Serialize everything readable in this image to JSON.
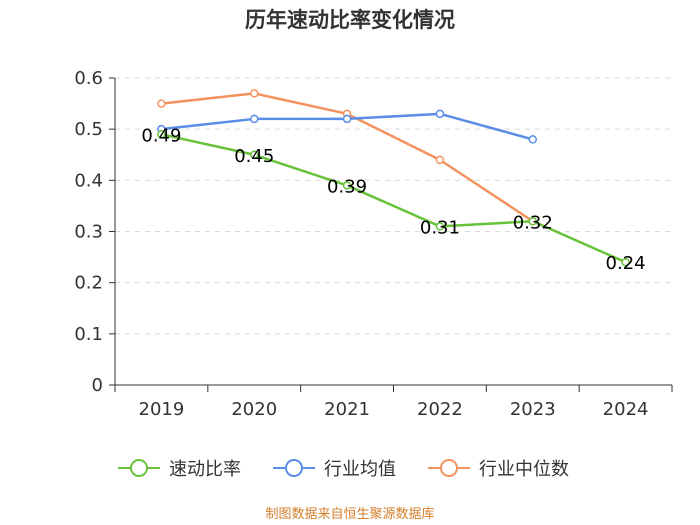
{
  "chart_data": {
    "type": "line",
    "title": "历年速动比率变化情况",
    "categories": [
      "2019",
      "2020",
      "2021",
      "2022",
      "2023",
      "2024"
    ],
    "ylim": [
      0,
      0.6
    ],
    "yticks": [
      "0",
      "0.1",
      "0.2",
      "0.3",
      "0.4",
      "0.5",
      "0.6"
    ],
    "grid": true,
    "legend_position": "bottom",
    "series": [
      {
        "name": "速动比率",
        "color": "#67c23a",
        "values": [
          0.49,
          0.45,
          0.39,
          0.31,
          0.32,
          0.24
        ],
        "labels": [
          "0.49",
          "0.45",
          "0.39",
          "0.31",
          "0.32",
          "0.24"
        ]
      },
      {
        "name": "行业均值",
        "color": "#5a8ee6",
        "values": [
          0.5,
          0.52,
          0.52,
          0.53,
          0.48,
          null
        ]
      },
      {
        "name": "行业中位数",
        "color": "#f4925e",
        "values": [
          0.55,
          0.57,
          0.53,
          0.44,
          0.32,
          null
        ]
      }
    ]
  },
  "footer": {
    "source": "制图数据来自恒生聚源数据库"
  }
}
